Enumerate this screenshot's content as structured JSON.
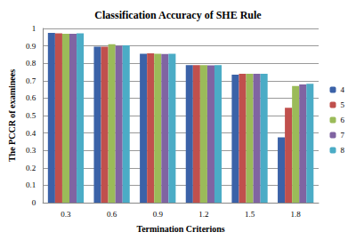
{
  "chart_data": {
    "type": "bar",
    "title": "Classification Accuracy of SHE Rule",
    "x_label": "Termination Criterions",
    "y_label": "The PCCR of examinees",
    "categories": [
      "0.3",
      "0.6",
      "0.9",
      "1.2",
      "1.5",
      "1.8"
    ],
    "series": [
      {
        "name": "4",
        "color": "#3b62a8",
        "values": [
          0.975,
          0.895,
          0.855,
          0.79,
          0.735,
          0.375
        ]
      },
      {
        "name": "5",
        "color": "#c0504d",
        "values": [
          0.972,
          0.895,
          0.857,
          0.79,
          0.74,
          0.545
        ]
      },
      {
        "name": "6",
        "color": "#9bbb59",
        "values": [
          0.97,
          0.91,
          0.855,
          0.79,
          0.74,
          0.67
        ]
      },
      {
        "name": "7",
        "color": "#8064a2",
        "values": [
          0.97,
          0.9,
          0.853,
          0.788,
          0.74,
          0.678
        ]
      },
      {
        "name": "8",
        "color": "#4bacc6",
        "values": [
          0.972,
          0.903,
          0.855,
          0.79,
          0.74,
          0.683
        ]
      }
    ],
    "ylim": [
      0,
      1
    ],
    "yticks": [
      0,
      0.1,
      0.2,
      0.3,
      0.4,
      0.5,
      0.6,
      0.7,
      0.8,
      0.9,
      1
    ],
    "grid": true,
    "legend": "right"
  }
}
